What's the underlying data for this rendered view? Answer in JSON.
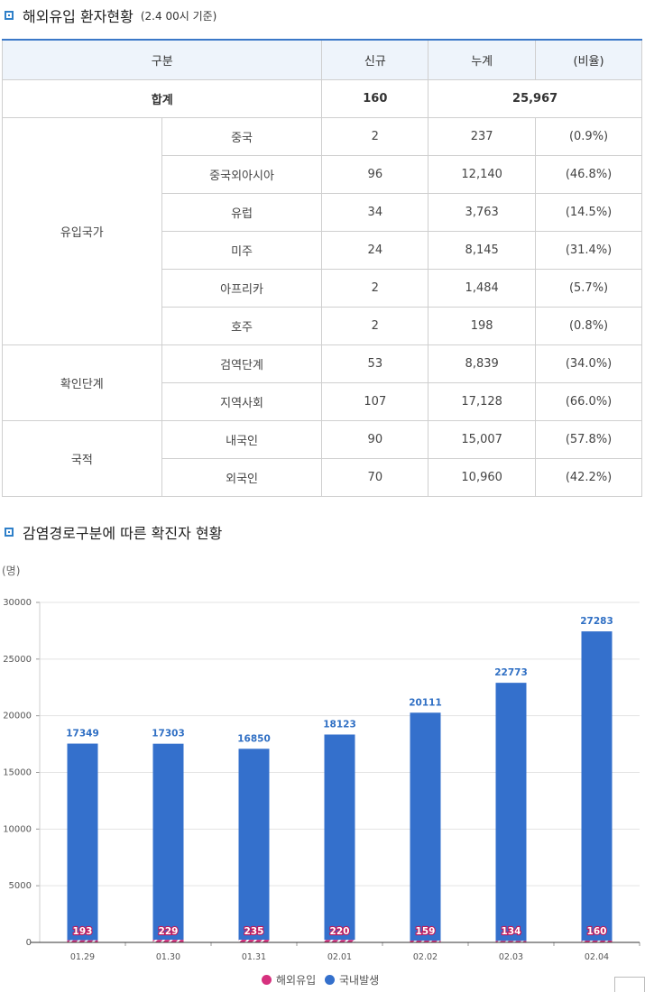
{
  "section1": {
    "title": "해외유입 환자현황",
    "subtitle": "(2.4 00시 기준)"
  },
  "table": {
    "headers": [
      "구분",
      "신규",
      "누계",
      "(비율)"
    ],
    "total": {
      "label": "합계",
      "new": "160",
      "cumulative": "25,967"
    },
    "groups": [
      {
        "name": "유입국가",
        "rows": [
          {
            "label": "중국",
            "new": "2",
            "cumulative": "237",
            "ratio": "(0.9%)"
          },
          {
            "label": "중국외아시아",
            "new": "96",
            "cumulative": "12,140",
            "ratio": "(46.8%)"
          },
          {
            "label": "유럽",
            "new": "34",
            "cumulative": "3,763",
            "ratio": "(14.5%)"
          },
          {
            "label": "미주",
            "new": "24",
            "cumulative": "8,145",
            "ratio": "(31.4%)"
          },
          {
            "label": "아프리카",
            "new": "2",
            "cumulative": "1,484",
            "ratio": "(5.7%)"
          },
          {
            "label": "호주",
            "new": "2",
            "cumulative": "198",
            "ratio": "(0.8%)"
          }
        ]
      },
      {
        "name": "확인단계",
        "rows": [
          {
            "label": "검역단계",
            "new": "53",
            "cumulative": "8,839",
            "ratio": "(34.0%)"
          },
          {
            "label": "지역사회",
            "new": "107",
            "cumulative": "17,128",
            "ratio": "(66.0%)"
          }
        ]
      },
      {
        "name": "국적",
        "rows": [
          {
            "label": "내국인",
            "new": "90",
            "cumulative": "15,007",
            "ratio": "(57.8%)"
          },
          {
            "label": "외국인",
            "new": "70",
            "cumulative": "10,960",
            "ratio": "(42.2%)"
          }
        ]
      }
    ]
  },
  "section2": {
    "title": "감염경로구분에 따른 확진자 현황"
  },
  "chart_data": {
    "type": "bar",
    "stacked": true,
    "ylabel": "(명)",
    "ylim": [
      0,
      30000
    ],
    "yticks": [
      0,
      5000,
      10000,
      15000,
      20000,
      25000,
      30000
    ],
    "grid": true,
    "legend_position": "bottom",
    "categories": [
      "01.29",
      "01.30",
      "01.31",
      "02.01",
      "02.02",
      "02.03",
      "02.04"
    ],
    "series": [
      {
        "name": "해외유입",
        "color": "#d6317e",
        "values": [
          193,
          229,
          235,
          220,
          159,
          134,
          160
        ]
      },
      {
        "name": "국내발생",
        "color": "#3470cc",
        "values": [
          17349,
          17303,
          16850,
          18123,
          20111,
          22773,
          27283
        ]
      }
    ]
  }
}
